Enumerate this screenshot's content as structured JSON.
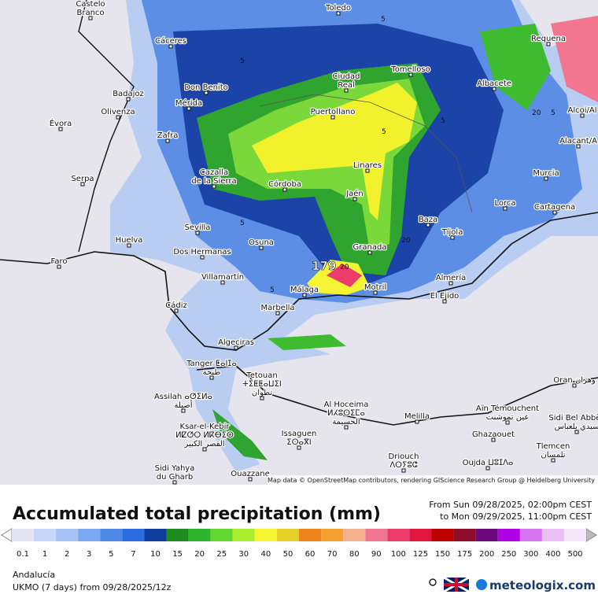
{
  "map": {
    "max_label": "179",
    "contour_labels": [
      "5",
      "5",
      "5",
      "5",
      "5",
      "5",
      "20",
      "20",
      "20",
      "5"
    ],
    "attribution": "Map data © OpenStreetMap contributors, rendering GIScience Research Group @ Heidelberg University",
    "cities": [
      "Castelo\nBranco",
      "Toledo",
      "Cáceres",
      "Requena",
      "Ciudad\nReal",
      "Tomelloso",
      "Albacete",
      "Alcoi/Al",
      "Don Benito",
      "Badajoz",
      "Mérida",
      "Olivenza",
      "Évora",
      "Puertollano",
      "Zafra",
      "Alacant/A",
      "Cazalla\nde la Sierra",
      "Córdoba",
      "Linares",
      "Murcia",
      "Serpa",
      "Jaén",
      "Lorca",
      "Cartagena",
      "Baza",
      "Tíjola",
      "Sevilla",
      "Huelva",
      "Osuna",
      "Dos Hermanas",
      "Granada",
      "Faro",
      "Almería",
      "Villamartín",
      "Motril",
      "Málaga",
      "El Ejido",
      "Marbella",
      "Cádiz",
      "Algeciras",
      "Tanger ⵟⴰⵏⵊⴰ\nطنجة",
      "Tetouan\nⵜⵉⵟⵟⴰⵡⵉⵏ\nتطوان",
      "Assilah ⴰⵚⵉⵍⴰ\nأصيلة",
      "Al Hoceima\nⵍⵃⵓⵙⵉⵎⴰ\nالحسيمة",
      "Melilla",
      "Oran وهران",
      "Aïn Témouchent\nعين تموشنت",
      "Sidi Bel Abbès\nسيدي بلعباس",
      "Ksar-el-Kebir\nⵍⵇⵚⵔ ⵍⴽⴱⵉⵔ\nالقصر الكبير",
      "Issaguen\nⵉⵙⴰⴳⵏ",
      "Ghazaouet",
      "Tlemcen\nتلمسان",
      "Driouch\nⴷⵔⵢⵓⵛ",
      "Oujda ⵡⵓⵊⴷⴰ",
      "Sidi Yahya\ndu Gharb",
      "Ouazzane"
    ]
  },
  "footer": {
    "title": "Accumulated total precipitation (mm)",
    "from": "From Sun 09/28/2025, 02:00pm CEST",
    "to": "to Mon 09/29/2025, 11:00pm CEST",
    "region": "Andalucía",
    "model": "UKMO (7 days) from 09/28/2025/12z",
    "brand": "meteologix.com"
  },
  "legend": {
    "values": [
      0.1,
      1,
      2,
      3,
      5,
      7,
      10,
      15,
      20,
      25,
      30,
      40,
      50,
      60,
      70,
      80,
      90,
      100,
      125,
      150,
      175,
      200,
      250,
      300,
      400,
      500
    ],
    "colors": [
      "#e4e4f4",
      "#c6d7fa",
      "#a3c2f6",
      "#7aa7f2",
      "#4d88e8",
      "#2a6cdf",
      "#0f3f9e",
      "#1e8c1e",
      "#2db52d",
      "#62d82f",
      "#a9ef2f",
      "#f4f432",
      "#e5d02a",
      "#f0841c",
      "#f5a030",
      "#f4b08c",
      "#f27690",
      "#ec3a6a",
      "#e0163c",
      "#bc0000",
      "#8c0c2a",
      "#6c0a7c",
      "#b000e4",
      "#d674f2",
      "#eac0f6",
      "#f2e6f8"
    ]
  }
}
